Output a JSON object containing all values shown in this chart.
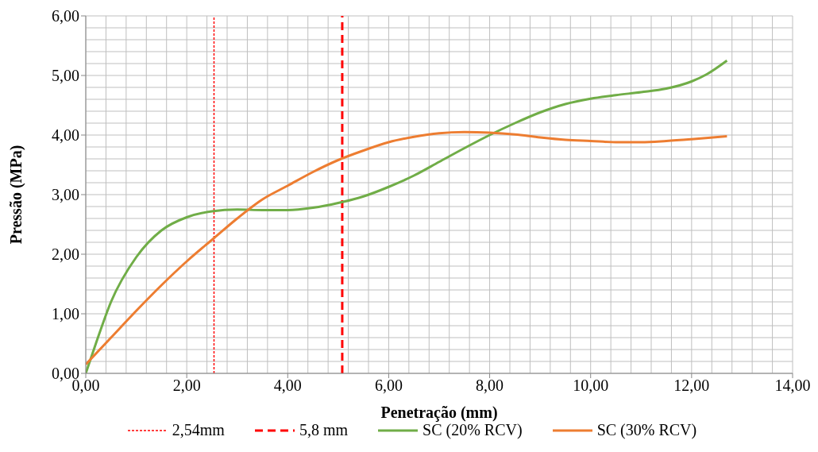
{
  "chart_data": {
    "type": "line",
    "xlabel": "Penetração (mm)",
    "ylabel": "Pressão (MPa)",
    "xlim": [
      0,
      14
    ],
    "ylim": [
      0,
      6
    ],
    "xticks": [
      {
        "value": 0,
        "label": "0,00"
      },
      {
        "value": 2,
        "label": "2,00"
      },
      {
        "value": 4,
        "label": "4,00"
      },
      {
        "value": 6,
        "label": "6,00"
      },
      {
        "value": 8,
        "label": "8,00"
      },
      {
        "value": 10,
        "label": "10,00"
      },
      {
        "value": 12,
        "label": "12,00"
      },
      {
        "value": 14,
        "label": "14,00"
      }
    ],
    "yticks": [
      {
        "value": 0,
        "label": "0,00"
      },
      {
        "value": 1,
        "label": "1,00"
      },
      {
        "value": 2,
        "label": "2,00"
      },
      {
        "value": 3,
        "label": "3,00"
      },
      {
        "value": 4,
        "label": "4,00"
      },
      {
        "value": 5,
        "label": "5,00"
      },
      {
        "value": 6,
        "label": "6,00"
      }
    ],
    "grid": true,
    "legend": "bottom",
    "marker": "none",
    "line_style": "solid",
    "ref_lines": [
      {
        "axis": "x",
        "value": 2.54,
        "label": "2,54mm",
        "color": "#ff0000",
        "line_style": "dotted"
      },
      {
        "axis": "x",
        "value": 5.08,
        "label": "5,8 mm",
        "color": "#ff0000",
        "line_style": "dashed"
      }
    ],
    "series": [
      {
        "name": "SC (20% RCV)",
        "color": "#70ad47",
        "x": [
          0,
          0.2,
          0.5,
          1,
          1.5,
          2,
          2.5,
          3,
          3.5,
          4,
          4.5,
          5,
          5.5,
          6,
          6.5,
          7,
          7.5,
          8,
          8.5,
          9,
          9.5,
          10,
          10.5,
          11,
          11.5,
          12,
          12.3,
          12.7
        ],
        "values": [
          0,
          0.5,
          1.2,
          1.95,
          2.4,
          2.62,
          2.72,
          2.75,
          2.74,
          2.74,
          2.78,
          2.86,
          2.97,
          3.13,
          3.32,
          3.55,
          3.78,
          4.0,
          4.2,
          4.38,
          4.52,
          4.61,
          4.67,
          4.72,
          4.78,
          4.9,
          5.02,
          5.25
        ]
      },
      {
        "name": "SC (30% RCV)",
        "color": "#ed7d31",
        "x": [
          0,
          0.5,
          1,
          1.5,
          2,
          2.54,
          3,
          3.5,
          4,
          4.5,
          5,
          5.5,
          6,
          6.5,
          7,
          7.5,
          8,
          8.5,
          9,
          9.5,
          10,
          10.5,
          11,
          11.5,
          12,
          12.7
        ],
        "values": [
          0.15,
          0.6,
          1.05,
          1.48,
          1.88,
          2.27,
          2.6,
          2.92,
          3.15,
          3.38,
          3.58,
          3.74,
          3.88,
          3.97,
          4.03,
          4.05,
          4.04,
          4.01,
          3.96,
          3.92,
          3.9,
          3.88,
          3.88,
          3.9,
          3.93,
          3.98
        ]
      }
    ]
  }
}
